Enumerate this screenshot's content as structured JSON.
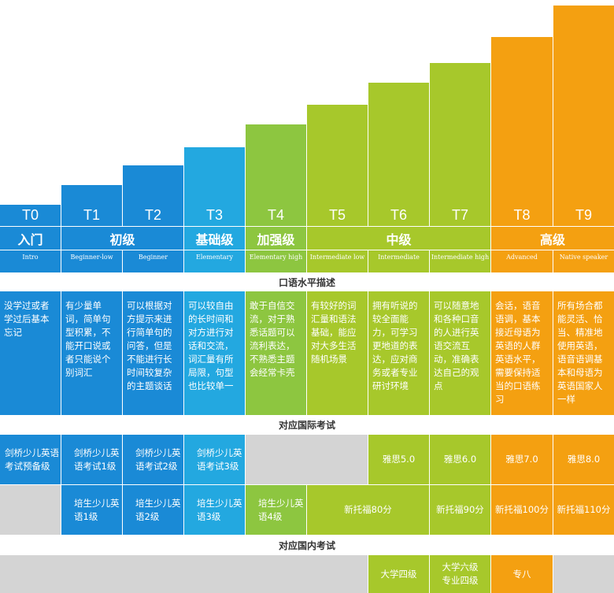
{
  "tiers": [
    {
      "code": "T0",
      "english": "Intro",
      "description": "没学过或者学过后基本忘记"
    },
    {
      "code": "T1",
      "english": "Beginner-low",
      "description": "有少量单词，简单句型积累，不能开口说或者只能说个别词汇"
    },
    {
      "code": "T2",
      "english": "Beginner",
      "description": "可以根据对方提示来进行简单句的问答，但是不能进行长时间较复杂的主题谈话"
    },
    {
      "code": "T3",
      "english": "Elementary",
      "description": "可以较自由的长时间和对方进行对话和交流，词汇量有所局限，句型也比较单一"
    },
    {
      "code": "T4",
      "english": "Elementary high",
      "description": "敢于自信交流，对于熟悉话题可以流利表达，不熟悉主题会经常卡壳"
    },
    {
      "code": "T5",
      "english": "Intermediate low",
      "description": "有较好的词汇量和语法基础，能应对大多生活随机场景"
    },
    {
      "code": "T6",
      "english": "Intermediate",
      "description": "拥有听说的较全面能力，可学习更地道的表达，应对商务或者专业研讨环境"
    },
    {
      "code": "T7",
      "english": "Intermediate high",
      "description": "可以随意地和各种口音的人进行英语交流互动，准确表达自己的观点"
    },
    {
      "code": "T8",
      "english": "Advanced",
      "description": "会话，语音语调，基本接近母语为英语的人群英语水平，需要保持适当的口语练习"
    },
    {
      "code": "T9",
      "english": "Native speaker",
      "description": "所有场合都能灵活、恰当、精准地使用英语，语音语调基本和母语为英语国家人一样"
    }
  ],
  "groups": [
    "入门",
    "初级",
    "基础级",
    "加强级",
    "中级",
    "高级"
  ],
  "sections": {
    "speaking": "口语水平描述",
    "international": "对应国际考试",
    "domestic": "对应国内考试"
  },
  "exams": {
    "cambridge": [
      "剑桥少儿英语考试预备级",
      "剑桥少儿英语考试1级",
      "剑桥少儿英语考试2级",
      "剑桥少儿英语考试3级"
    ],
    "ielts": [
      "雅思5.0",
      "雅思6.0",
      "雅思7.0",
      "雅思8.0"
    ],
    "peisheng": [
      "培生少儿英语1级",
      "培生少儿英语2级",
      "培生少儿英语3级",
      "培生少儿英语4级"
    ],
    "toefl": [
      "新托福80分",
      "新托福90分",
      "新托福100分",
      "新托福110分"
    ],
    "domestic": [
      "大学四级",
      "大学六级专业四级",
      "专八"
    ]
  },
  "colors": {
    "blue_dark": "#1a8ad6",
    "blue_light": "#23a8e0",
    "green": "#8dc640",
    "lime": "#a7c82b",
    "orange": "#f4a011",
    "gray": "#d4d4d4"
  }
}
